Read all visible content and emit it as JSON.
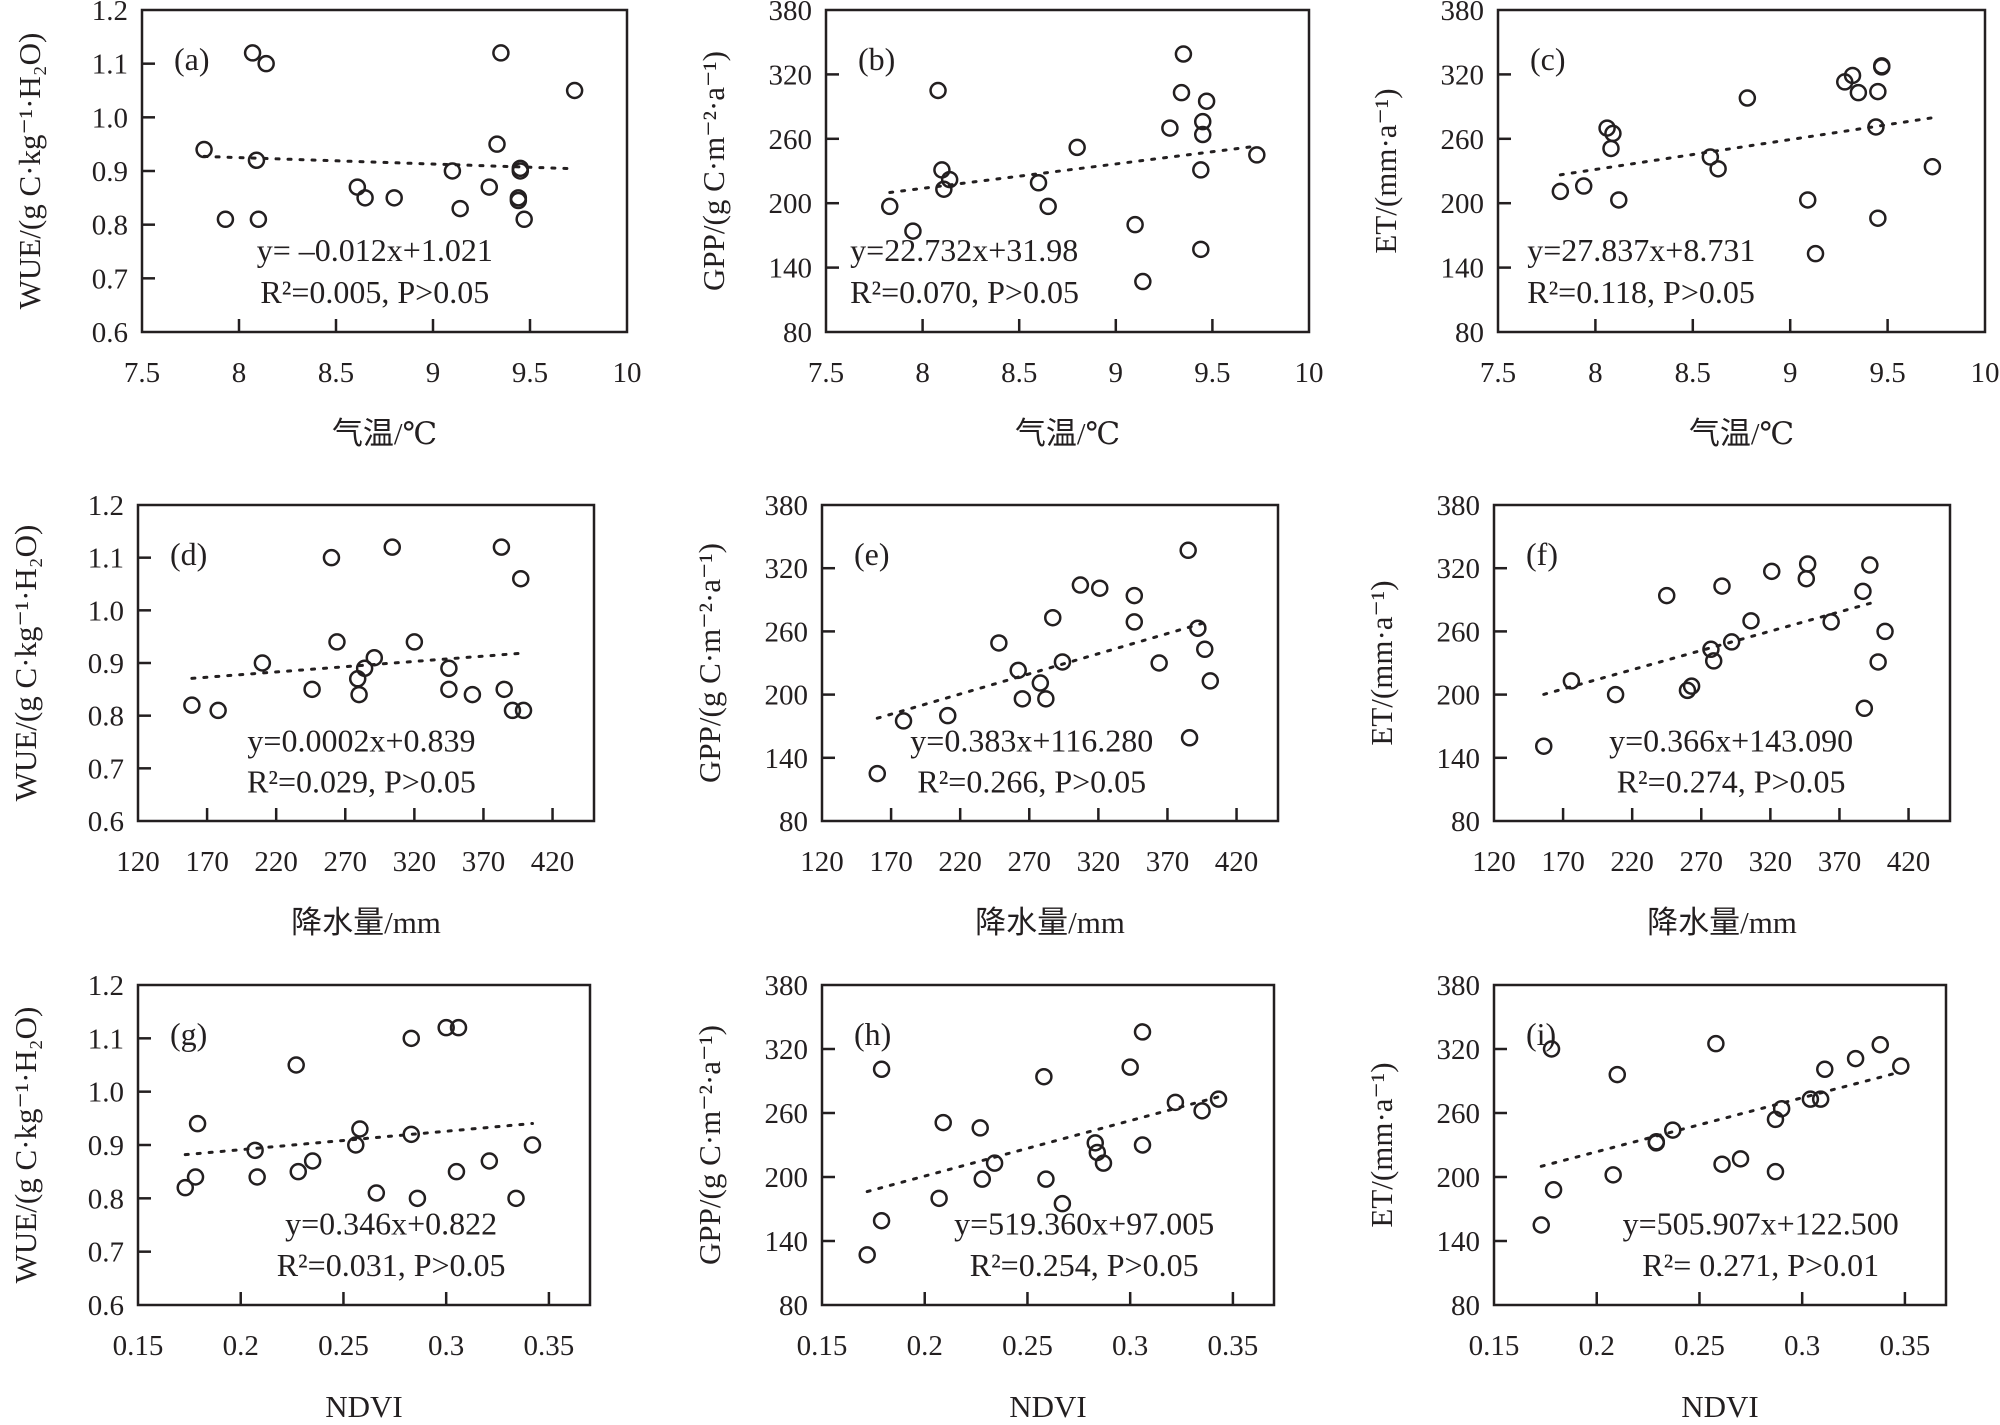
{
  "chart_data": [
    {
      "type": "scatter",
      "label": "(a)",
      "xlabel": "气温/℃",
      "ylabel": "WUE/(g C·kg⁻¹·H₂O)",
      "xlim": [
        7.5,
        10
      ],
      "ylim": [
        0.6,
        1.2
      ],
      "xticks": [
        "7.5",
        "8",
        "8.5",
        "9",
        "9.5",
        "10"
      ],
      "yticks": [
        "0.6",
        "0.7",
        "0.8",
        "0.9",
        "1.0",
        "1.1",
        "1.2"
      ],
      "points": [
        [
          7.82,
          0.94
        ],
        [
          7.93,
          0.81
        ],
        [
          8.07,
          1.12
        ],
        [
          8.14,
          1.1
        ],
        [
          8.09,
          0.92
        ],
        [
          8.1,
          0.81
        ],
        [
          8.61,
          0.87
        ],
        [
          8.65,
          0.85
        ],
        [
          8.8,
          0.85
        ],
        [
          9.1,
          0.9
        ],
        [
          9.14,
          0.83
        ],
        [
          9.29,
          0.87
        ],
        [
          9.33,
          0.95
        ],
        [
          9.35,
          1.12
        ],
        [
          9.45,
          0.9
        ],
        [
          9.44,
          0.85
        ],
        [
          9.47,
          0.81
        ],
        [
          9.73,
          1.05
        ],
        [
          9.44,
          0.845
        ],
        [
          9.45,
          0.905
        ]
      ],
      "fit": {
        "slope": -0.012,
        "intercept": 1.021,
        "xrange": [
          7.82,
          9.73
        ]
      },
      "equation": "y= –0.012x+1.021",
      "stats": "R²=0.005, P>0.05"
    },
    {
      "type": "scatter",
      "label": "(b)",
      "xlabel": "气温/℃",
      "ylabel": "GPP/(g C·m⁻²·a⁻¹)",
      "xlim": [
        7.5,
        10
      ],
      "ylim": [
        80,
        380
      ],
      "xticks": [
        "7.5",
        "8",
        "8.5",
        "9",
        "9.5",
        "10"
      ],
      "yticks": [
        "80",
        "140",
        "200",
        "260",
        "320",
        "380"
      ],
      "points": [
        [
          7.83,
          197
        ],
        [
          7.95,
          174
        ],
        [
          8.08,
          305
        ],
        [
          8.1,
          231
        ],
        [
          8.11,
          213
        ],
        [
          8.14,
          222
        ],
        [
          8.6,
          219
        ],
        [
          8.65,
          197
        ],
        [
          8.8,
          252
        ],
        [
          9.1,
          180
        ],
        [
          9.14,
          127
        ],
        [
          9.28,
          270
        ],
        [
          9.34,
          303
        ],
        [
          9.35,
          339
        ],
        [
          9.47,
          295
        ],
        [
          9.45,
          276
        ],
        [
          9.45,
          264
        ],
        [
          9.44,
          231
        ],
        [
          9.44,
          157
        ],
        [
          9.73,
          245
        ]
      ],
      "fit": {
        "slope": 22.732,
        "intercept": 31.98,
        "xrange": [
          7.83,
          9.73
        ]
      },
      "equation": "y=22.732x+31.98",
      "stats": "R²=0.070, P>0.05"
    },
    {
      "type": "scatter",
      "label": "(c)",
      "xlabel": "气温/℃",
      "ylabel": "ET/(mm·a⁻¹)",
      "xlim": [
        7.5,
        10
      ],
      "ylim": [
        80,
        380
      ],
      "xticks": [
        "7.5",
        "8",
        "8.5",
        "9",
        "9.5",
        "10"
      ],
      "yticks": [
        "80",
        "140",
        "200",
        "260",
        "320",
        "380"
      ],
      "points": [
        [
          7.82,
          211
        ],
        [
          7.94,
          216
        ],
        [
          8.06,
          270
        ],
        [
          8.09,
          265
        ],
        [
          8.08,
          251
        ],
        [
          8.12,
          203
        ],
        [
          8.59,
          243
        ],
        [
          8.63,
          232
        ],
        [
          8.78,
          298
        ],
        [
          9.09,
          203
        ],
        [
          9.13,
          153
        ],
        [
          9.28,
          313
        ],
        [
          9.32,
          319
        ],
        [
          9.35,
          303
        ],
        [
          9.45,
          186
        ],
        [
          9.44,
          271
        ],
        [
          9.45,
          304
        ],
        [
          9.47,
          328
        ],
        [
          9.47,
          327
        ],
        [
          9.73,
          234
        ]
      ],
      "fit": {
        "slope": 27.837,
        "intercept": 8.731,
        "xrange": [
          7.82,
          9.73
        ]
      },
      "equation": "y=27.837x+8.731",
      "stats": "R²=0.118, P>0.05"
    },
    {
      "type": "scatter",
      "label": "(d)",
      "xlabel": "降水量/mm",
      "ylabel": "WUE/(g C·kg⁻¹·H₂O)",
      "xlim": [
        120,
        450
      ],
      "ylim": [
        0.6,
        1.2
      ],
      "xticks": [
        "120",
        "170",
        "220",
        "270",
        "320",
        "370",
        "420"
      ],
      "yticks": [
        "0.6",
        "0.7",
        "0.8",
        "0.9",
        "1.0",
        "1.1",
        "1.2"
      ],
      "points": [
        [
          159,
          0.82
        ],
        [
          178,
          0.81
        ],
        [
          210,
          0.9
        ],
        [
          246,
          0.85
        ],
        [
          260,
          1.1
        ],
        [
          264,
          0.94
        ],
        [
          279,
          0.87
        ],
        [
          280,
          0.84
        ],
        [
          284,
          0.89
        ],
        [
          291,
          0.91
        ],
        [
          304,
          1.12
        ],
        [
          320,
          0.94
        ],
        [
          345,
          0.89
        ],
        [
          345,
          0.85
        ],
        [
          362,
          0.84
        ],
        [
          383,
          1.12
        ],
        [
          385,
          0.85
        ],
        [
          391,
          0.81
        ],
        [
          399,
          0.81
        ],
        [
          397,
          1.06
        ]
      ],
      "fit": {
        "slope": 0.0002,
        "intercept": 0.839,
        "xrange": [
          159,
          399
        ]
      },
      "equation": "y=0.0002x+0.839",
      "stats": "R²=0.029, P>0.05"
    },
    {
      "type": "scatter",
      "label": "(e)",
      "xlabel": "降水量/mm",
      "ylabel": "GPP/(g C·m⁻²·a⁻¹)",
      "xlim": [
        120,
        450
      ],
      "ylim": [
        80,
        380
      ],
      "xticks": [
        "120",
        "170",
        "220",
        "270",
        "320",
        "370",
        "420"
      ],
      "yticks": [
        "80",
        "140",
        "200",
        "260",
        "320",
        "380"
      ],
      "points": [
        [
          160,
          125
        ],
        [
          179,
          175
        ],
        [
          211,
          180
        ],
        [
          248,
          249
        ],
        [
          262,
          223
        ],
        [
          265,
          196
        ],
        [
          278,
          211
        ],
        [
          282,
          196
        ],
        [
          287,
          273
        ],
        [
          294,
          231
        ],
        [
          307,
          304
        ],
        [
          321,
          301
        ],
        [
          346,
          294
        ],
        [
          346,
          269
        ],
        [
          364,
          230
        ],
        [
          385,
          337
        ],
        [
          386,
          159
        ],
        [
          392,
          263
        ],
        [
          397,
          243
        ],
        [
          401,
          213
        ]
      ],
      "fit": {
        "slope": 0.383,
        "intercept": 116.28,
        "xrange": [
          160,
          401
        ]
      },
      "equation": "y=0.383x+116.280",
      "stats": "R²=0.266, P>0.05"
    },
    {
      "type": "scatter",
      "label": "(f)",
      "xlabel": "降水量/mm",
      "ylabel": "ET/(mm·a⁻¹)",
      "xlim": [
        120,
        450
      ],
      "ylim": [
        80,
        380
      ],
      "xticks": [
        "120",
        "170",
        "220",
        "270",
        "320",
        "370",
        "420"
      ],
      "yticks": [
        "80",
        "140",
        "200",
        "260",
        "320",
        "380"
      ],
      "points": [
        [
          156,
          151
        ],
        [
          176,
          213
        ],
        [
          208,
          200
        ],
        [
          245,
          294
        ],
        [
          260,
          204
        ],
        [
          263,
          208
        ],
        [
          277,
          243
        ],
        [
          279,
          232
        ],
        [
          285,
          303
        ],
        [
          292,
          250
        ],
        [
          306,
          270
        ],
        [
          321,
          317
        ],
        [
          346,
          310
        ],
        [
          347,
          324
        ],
        [
          364,
          269
        ],
        [
          387,
          298
        ],
        [
          388,
          187
        ],
        [
          392,
          323
        ],
        [
          398,
          231
        ],
        [
          403,
          260
        ]
      ],
      "fit": {
        "slope": 0.366,
        "intercept": 143.09,
        "xrange": [
          156,
          398
        ]
      },
      "equation": "y=0.366x+143.090",
      "stats": "R²=0.274, P>0.05"
    },
    {
      "type": "scatter",
      "label": "(g)",
      "xlabel": "NDVI",
      "ylabel": "WUE/(g C·kg⁻¹·H₂O)",
      "xlim": [
        0.15,
        0.37
      ],
      "ylim": [
        0.6,
        1.2
      ],
      "xticks": [
        "0.15",
        "0.2",
        "0.25",
        "0.3",
        "0.35"
      ],
      "yticks": [
        "0.6",
        "0.7",
        "0.8",
        "0.9",
        "1.0",
        "1.1",
        "1.2"
      ],
      "points": [
        [
          0.173,
          0.82
        ],
        [
          0.178,
          0.84
        ],
        [
          0.179,
          0.94
        ],
        [
          0.207,
          0.89
        ],
        [
          0.208,
          0.84
        ],
        [
          0.227,
          1.05
        ],
        [
          0.228,
          0.85
        ],
        [
          0.235,
          0.87
        ],
        [
          0.256,
          0.9
        ],
        [
          0.258,
          0.93
        ],
        [
          0.266,
          0.81
        ],
        [
          0.283,
          1.1
        ],
        [
          0.283,
          0.92
        ],
        [
          0.286,
          0.8
        ],
        [
          0.3,
          1.12
        ],
        [
          0.306,
          1.12
        ],
        [
          0.305,
          0.85
        ],
        [
          0.321,
          0.87
        ],
        [
          0.334,
          0.8
        ],
        [
          0.342,
          0.9
        ]
      ],
      "fit": {
        "slope": 0.346,
        "intercept": 0.822,
        "xrange": [
          0.173,
          0.342
        ]
      },
      "equation": "y=0.346x+0.822",
      "stats": "R²=0.031, P>0.05"
    },
    {
      "type": "scatter",
      "label": "(h)",
      "xlabel": "NDVI",
      "ylabel": "GPP/(g C·m⁻²·a⁻¹)",
      "xlim": [
        0.15,
        0.37
      ],
      "ylim": [
        80,
        380
      ],
      "xticks": [
        "0.15",
        "0.2",
        "0.25",
        "0.3",
        "0.35"
      ],
      "yticks": [
        "80",
        "140",
        "200",
        "260",
        "320",
        "380"
      ],
      "points": [
        [
          0.172,
          127
        ],
        [
          0.179,
          159
        ],
        [
          0.179,
          301
        ],
        [
          0.207,
          180
        ],
        [
          0.209,
          251
        ],
        [
          0.227,
          246
        ],
        [
          0.228,
          198
        ],
        [
          0.234,
          213
        ],
        [
          0.258,
          294
        ],
        [
          0.259,
          198
        ],
        [
          0.267,
          175
        ],
        [
          0.283,
          232
        ],
        [
          0.284,
          223
        ],
        [
          0.287,
          213
        ],
        [
          0.3,
          303
        ],
        [
          0.306,
          336
        ],
        [
          0.306,
          230
        ],
        [
          0.322,
          270
        ],
        [
          0.335,
          262
        ],
        [
          0.343,
          273
        ]
      ],
      "fit": {
        "slope": 519.36,
        "intercept": 97.005,
        "xrange": [
          0.172,
          0.343
        ]
      },
      "equation": "y=519.360x+97.005",
      "stats": "R²=0.254, P>0.05"
    },
    {
      "type": "scatter",
      "label": "(i)",
      "xlabel": "NDVI",
      "ylabel": "ET/(mm·a⁻¹)",
      "xlim": [
        0.15,
        0.37
      ],
      "ylim": [
        80,
        380
      ],
      "xticks": [
        "0.15",
        "0.2",
        "0.25",
        "0.3",
        "0.35"
      ],
      "yticks": [
        "80",
        "140",
        "200",
        "260",
        "320",
        "380"
      ],
      "points": [
        [
          0.173,
          155
        ],
        [
          0.179,
          188
        ],
        [
          0.178,
          320
        ],
        [
          0.208,
          202
        ],
        [
          0.21,
          296
        ],
        [
          0.229,
          232
        ],
        [
          0.229,
          233
        ],
        [
          0.237,
          244
        ],
        [
          0.261,
          212
        ],
        [
          0.258,
          325
        ],
        [
          0.27,
          217
        ],
        [
          0.287,
          254
        ],
        [
          0.29,
          264
        ],
        [
          0.287,
          205
        ],
        [
          0.304,
          273
        ],
        [
          0.309,
          273
        ],
        [
          0.311,
          301
        ],
        [
          0.326,
          311
        ],
        [
          0.338,
          324
        ],
        [
          0.348,
          304
        ]
      ],
      "fit": {
        "slope": 505.907,
        "intercept": 122.5,
        "xrange": [
          0.173,
          0.348
        ]
      },
      "equation": "y=505.907x+122.500",
      "stats": "R²= 0.271, P>0.01"
    }
  ]
}
